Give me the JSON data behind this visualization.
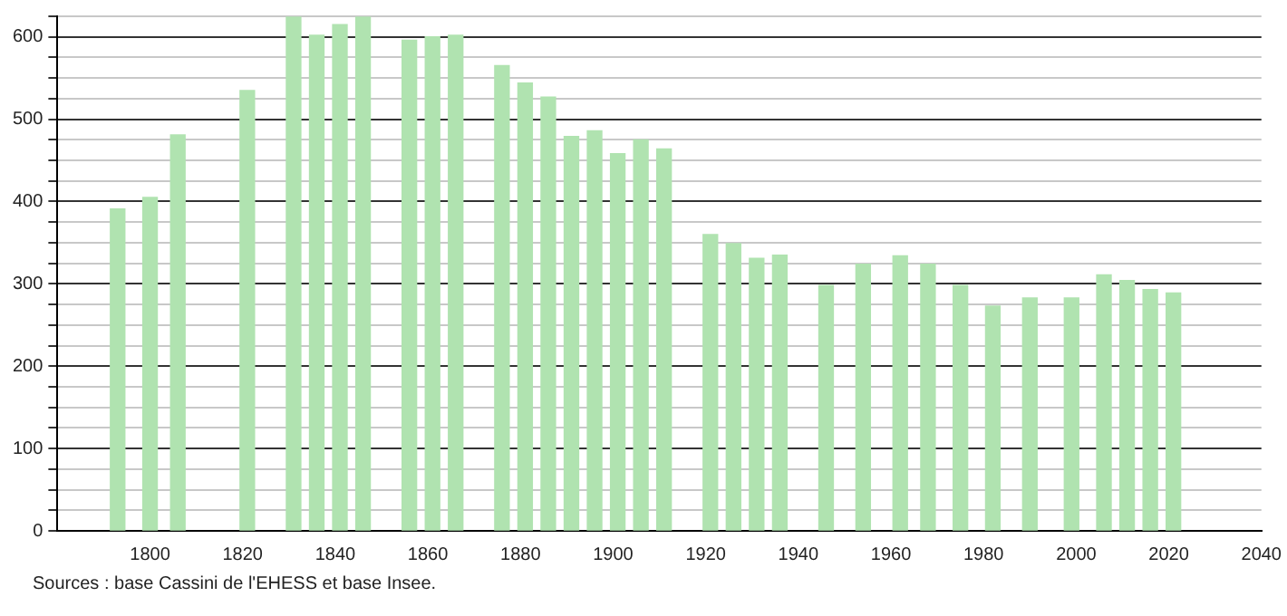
{
  "chart_data": {
    "type": "bar",
    "x": [
      1793,
      1800,
      1806,
      1821,
      1831,
      1836,
      1841,
      1846,
      1856,
      1861,
      1866,
      1876,
      1881,
      1886,
      1891,
      1896,
      1901,
      1906,
      1911,
      1921,
      1926,
      1931,
      1936,
      1946,
      1954,
      1962,
      1968,
      1975,
      1982,
      1990,
      1999,
      2006,
      2011,
      2016,
      2021
    ],
    "values": [
      391,
      405,
      481,
      535,
      624,
      602,
      615,
      624,
      596,
      600,
      602,
      565,
      544,
      527,
      479,
      486,
      458,
      475,
      464,
      360,
      349,
      331,
      335,
      298,
      324,
      334,
      324,
      298,
      273,
      283,
      283,
      311,
      304,
      293,
      289
    ],
    "color": "#b0e3b0",
    "xlim": [
      1780,
      2040
    ],
    "xticks": [
      1800,
      1820,
      1840,
      1860,
      1880,
      1900,
      1920,
      1940,
      1960,
      1980,
      2000,
      2020,
      2040
    ],
    "ylim": [
      0,
      625
    ],
    "yticks": [
      0,
      {
        "value": 25,
        "label": null
      },
      {
        "value": 50,
        "label": null
      },
      {
        "value": 75,
        "label": null
      },
      100,
      {
        "value": 125,
        "label": null
      },
      {
        "value": 150,
        "label": null
      },
      {
        "value": 175,
        "label": null
      },
      200,
      {
        "value": 225,
        "label": null
      },
      {
        "value": 250,
        "label": null
      },
      {
        "value": 275,
        "label": null
      },
      300,
      {
        "value": 325,
        "label": null
      },
      {
        "value": 350,
        "label": null
      },
      {
        "value": 375,
        "label": null
      },
      400,
      {
        "value": 425,
        "label": null
      },
      {
        "value": 450,
        "label": null
      },
      {
        "value": 475,
        "label": null
      },
      500,
      {
        "value": 525,
        "label": null
      },
      {
        "value": 550,
        "label": null
      },
      {
        "value": 575,
        "label": null
      },
      600,
      {
        "value": 625,
        "label": null
      }
    ],
    "grid": "y",
    "annotations": [
      "Sources : base Cassini de l'EHESS et base Insee."
    ]
  }
}
